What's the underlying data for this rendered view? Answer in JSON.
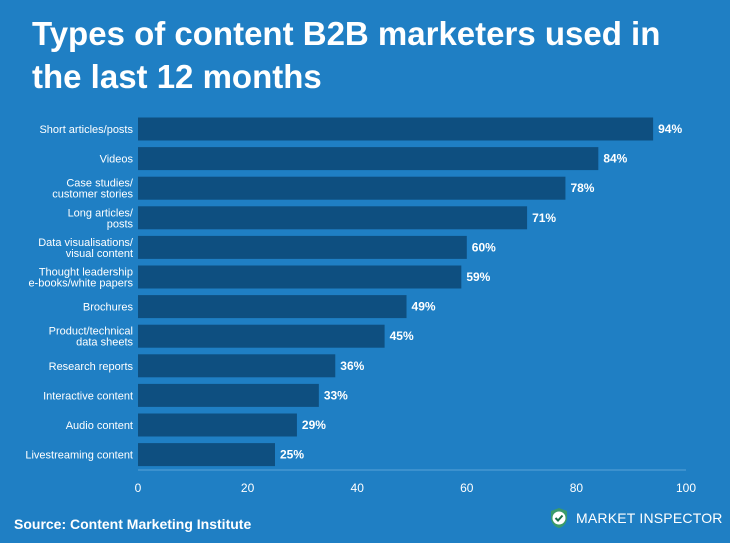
{
  "chart_data": {
    "type": "bar",
    "orientation": "horizontal",
    "title": "Types of content B2B marketers used in the last 12 months",
    "categories": [
      [
        "Short articles/posts"
      ],
      [
        "Videos"
      ],
      [
        "Case studies/",
        "customer stories"
      ],
      [
        "Long articles/",
        "posts"
      ],
      [
        "Data visualisations/",
        "visual content"
      ],
      [
        "Thought leadership",
        "e-books/white papers"
      ],
      [
        "Brochures"
      ],
      [
        "Product/technical",
        "data sheets"
      ],
      [
        "Research reports"
      ],
      [
        "Interactive content"
      ],
      [
        "Audio content"
      ],
      [
        "Livestreaming content"
      ]
    ],
    "values": [
      94,
      84,
      78,
      71,
      60,
      59,
      49,
      45,
      36,
      33,
      29,
      25
    ],
    "value_labels": [
      "94%",
      "84%",
      "78%",
      "71%",
      "60%",
      "59%",
      "49%",
      "45%",
      "36%",
      "33%",
      "29%",
      "25%"
    ],
    "xlim": [
      0,
      100
    ],
    "xticks": [
      0,
      20,
      40,
      60,
      80,
      100
    ],
    "grid": false,
    "bar_color": "#0e4f80",
    "background_color": "#1f7fc4"
  },
  "footer": {
    "source": "Source: Content Marketing Institute",
    "brand_name": "MARKET INSPECTOR",
    "brand_icon": "checkmark-badge-icon"
  }
}
